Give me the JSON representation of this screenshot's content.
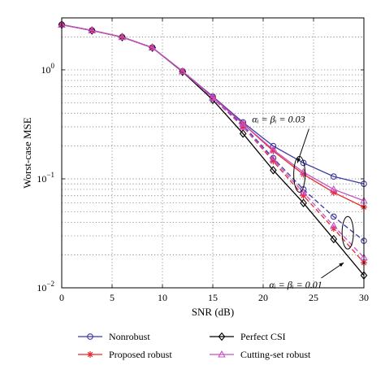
{
  "chart_data": {
    "type": "line",
    "xlabel": "SNR (dB)",
    "ylabel": "Worst-case MSE",
    "xlim": [
      0,
      30
    ],
    "ylim": [
      0.01,
      3
    ],
    "yscale": "log",
    "grid": true,
    "x_ticks": [
      "0",
      "5",
      "10",
      "15",
      "20",
      "25",
      "30"
    ],
    "y_ticks": [
      {
        "base": "10",
        "exp": "0",
        "value": 1
      },
      {
        "base": "10",
        "exp": "−1",
        "value": 0.1
      },
      {
        "base": "10",
        "exp": "−2",
        "value": 0.01
      }
    ],
    "x": [
      0,
      3,
      6,
      9,
      12,
      15,
      18,
      21,
      24,
      27,
      30
    ],
    "legend_placement": "bottom",
    "series": [
      {
        "name": "Nonrobust",
        "color": "#3b3ba0",
        "marker": "circle",
        "groups": [
          {
            "dash": "solid",
            "values": [
              2.6,
              2.3,
              2.0,
              1.6,
              0.97,
              0.57,
              0.33,
              0.2,
              0.14,
              0.105,
              0.09
            ]
          },
          {
            "dash": "dashed",
            "values": [
              2.6,
              2.3,
              2.0,
              1.6,
              0.97,
              0.56,
              0.31,
              0.155,
              0.08,
              0.045,
              0.027
            ]
          }
        ]
      },
      {
        "name": "Proposed robust",
        "color": "#e8292b",
        "marker": "star",
        "groups": [
          {
            "dash": "solid",
            "values": [
              2.6,
              2.3,
              2.0,
              1.6,
              0.97,
              0.56,
              0.32,
              0.18,
              0.11,
              0.075,
              0.055
            ]
          },
          {
            "dash": "dashed",
            "values": [
              2.6,
              2.3,
              2.0,
              1.6,
              0.97,
              0.55,
              0.3,
              0.145,
              0.07,
              0.035,
              0.017
            ]
          }
        ]
      },
      {
        "name": "Perfect CSI",
        "color": "#000000",
        "marker": "diamond",
        "groups": [
          {
            "dash": "solid",
            "values": [
              2.6,
              2.3,
              2.0,
              1.6,
              0.96,
              0.53,
              0.26,
              0.12,
              0.06,
              0.028,
              0.013
            ]
          }
        ]
      },
      {
        "name": "Cutting-set robust",
        "color": "#c74fc7",
        "marker": "triangle",
        "groups": [
          {
            "dash": "solid",
            "values": [
              2.6,
              2.3,
              2.0,
              1.6,
              0.97,
              0.56,
              0.32,
              0.185,
              0.115,
              0.08,
              0.063
            ]
          },
          {
            "dash": "dashed",
            "values": [
              2.6,
              2.3,
              2.0,
              1.6,
              0.97,
              0.55,
              0.3,
              0.15,
              0.075,
              0.037,
              0.019
            ]
          }
        ]
      }
    ],
    "annotations": [
      {
        "text": "αᵢ = βᵢ = 0.03",
        "group": 0,
        "ellipse_x": 23.6,
        "ellipse_y": 0.11,
        "text_x": 18.9,
        "text_y": 0.33,
        "arrow_to_x": 23.4,
        "arrow_to_y": 0.14
      },
      {
        "text": "αᵢ = βᵢ = 0.01",
        "group": 1,
        "ellipse_x": 28.4,
        "ellipse_y": 0.032,
        "text_x": 20.6,
        "text_y": 0.01,
        "arrow_to_x": 28.0,
        "arrow_to_y": 0.017
      }
    ]
  }
}
